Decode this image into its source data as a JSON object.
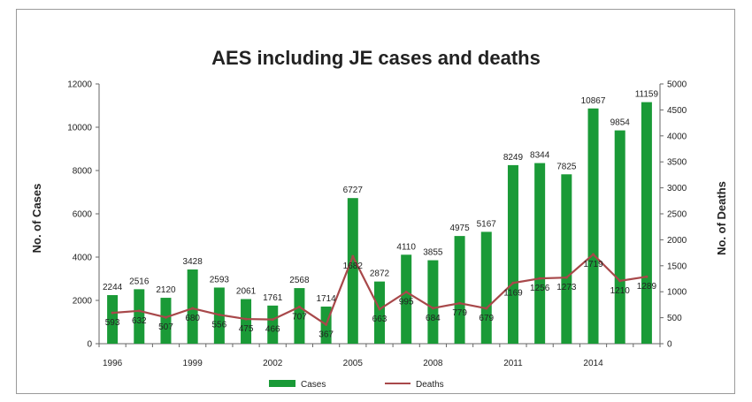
{
  "chart_data": {
    "type": "bar",
    "title": "AES including JE cases and deaths",
    "xlabel": "",
    "ylabel": "No. of Cases",
    "y2label": "No. of Deaths",
    "ylim": [
      0,
      12000
    ],
    "y2lim": [
      0,
      5000
    ],
    "yticks": [
      0,
      2000,
      4000,
      6000,
      8000,
      10000,
      12000
    ],
    "y2ticks": [
      0,
      500,
      1000,
      1500,
      2000,
      2500,
      3000,
      3500,
      4000,
      4500,
      5000
    ],
    "xtick_labels": [
      "1996",
      "1999",
      "2002",
      "2005",
      "2008",
      "2011",
      "2014"
    ],
    "categories": [
      "1996",
      "1997",
      "1998",
      "1999",
      "2000",
      "2001",
      "2002",
      "2003",
      "2004",
      "2005",
      "2006",
      "2007",
      "2008",
      "2009",
      "2010",
      "2011",
      "2012",
      "2013",
      "2014",
      "2015",
      "2016"
    ],
    "series": [
      {
        "name": "Cases",
        "kind": "bar",
        "axis": "left",
        "color": "#1a9a37",
        "values": [
          2244,
          2516,
          2120,
          3428,
          2593,
          2061,
          1761,
          2568,
          1714,
          6727,
          2872,
          4110,
          3855,
          4975,
          5167,
          8249,
          8344,
          7825,
          10867,
          9854,
          11159
        ]
      },
      {
        "name": "Deaths",
        "kind": "line",
        "axis": "right",
        "color": "#a8484a",
        "values": [
          593,
          632,
          507,
          680,
          556,
          475,
          466,
          707,
          367,
          1682,
          663,
          995,
          684,
          779,
          679,
          1169,
          1256,
          1273,
          1719,
          1210,
          1289
        ],
        "labels": [
          "593",
          "632",
          "507",
          "680",
          "556",
          "475",
          "466",
          "707",
          "367",
          "1682",
          "663",
          "995",
          "684",
          "779",
          "679",
          "1169",
          "1256",
          "1273",
          "1719",
          "1210",
          "1289"
        ]
      }
    ],
    "legend_position": "bottom-center",
    "grid": false
  }
}
